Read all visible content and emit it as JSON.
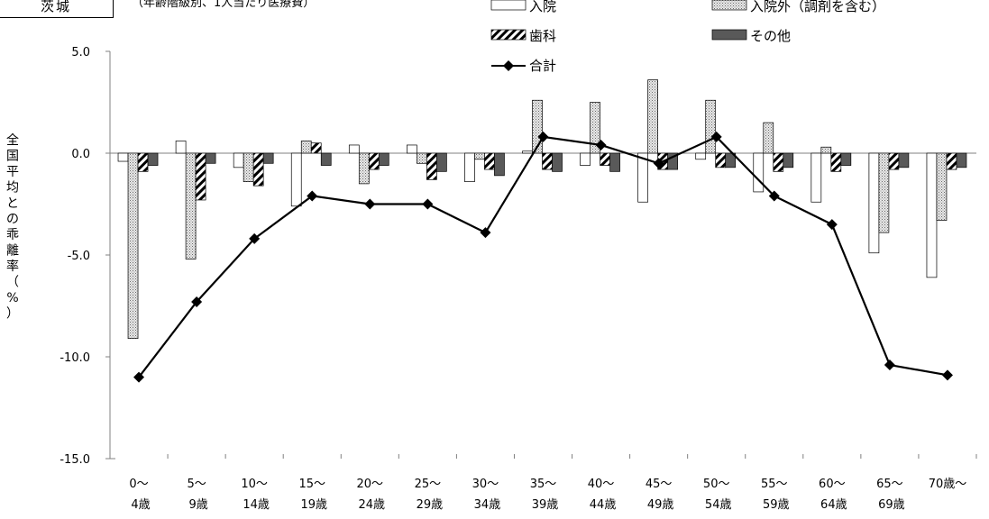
{
  "header": {
    "prefecture": "茨城",
    "subtitle": "（年齢階級別、1人当たり医療費）"
  },
  "chart_data": {
    "type": "bar",
    "ylabel": "全国平均との乖離率（%）",
    "ylim": [
      -15.0,
      5.0
    ],
    "yticks": [
      "5.0",
      "0.0",
      "-5.0",
      "-10.0",
      "-15.0"
    ],
    "categories": [
      [
        "0〜",
        "4歳"
      ],
      [
        "5〜",
        "9歳"
      ],
      [
        "10〜",
        "14歳"
      ],
      [
        "15〜",
        "19歳"
      ],
      [
        "20〜",
        "24歳"
      ],
      [
        "25〜",
        "29歳"
      ],
      [
        "30〜",
        "34歳"
      ],
      [
        "35〜",
        "39歳"
      ],
      [
        "40〜",
        "44歳"
      ],
      [
        "45〜",
        "49歳"
      ],
      [
        "50〜",
        "54歳"
      ],
      [
        "55〜",
        "59歳"
      ],
      [
        "60〜",
        "64歳"
      ],
      [
        "65〜",
        "69歳"
      ],
      [
        "70歳〜",
        ""
      ]
    ],
    "series": [
      {
        "name": "入院",
        "pattern": "white",
        "values": [
          -0.4,
          0.6,
          -0.7,
          -2.6,
          0.4,
          0.4,
          -1.4,
          0.1,
          -0.6,
          -2.4,
          -0.3,
          -1.9,
          -2.4,
          -4.9,
          -6.1
        ]
      },
      {
        "name": "入院外（調剤を含む）",
        "pattern": "dotted",
        "values": [
          -9.1,
          -5.2,
          -1.4,
          0.6,
          -1.5,
          -0.5,
          -0.3,
          2.6,
          2.5,
          3.6,
          2.6,
          1.5,
          0.3,
          -3.9,
          -3.3
        ]
      },
      {
        "name": "歯科",
        "pattern": "hatched",
        "values": [
          -0.9,
          -2.3,
          -1.6,
          0.5,
          -0.8,
          -1.3,
          -0.8,
          -0.8,
          -0.6,
          -0.8,
          -0.7,
          -0.9,
          -0.9,
          -0.8,
          -0.8
        ]
      },
      {
        "name": "その他",
        "pattern": "dark",
        "values": [
          -0.6,
          -0.5,
          -0.5,
          -0.6,
          -0.6,
          -0.9,
          -1.1,
          -0.9,
          -0.9,
          -0.8,
          -0.7,
          -0.7,
          -0.6,
          -0.7,
          -0.7
        ]
      }
    ],
    "line": {
      "name": "合計",
      "values": [
        -11.0,
        -7.3,
        -4.2,
        -2.1,
        -2.5,
        -2.5,
        -3.9,
        0.8,
        0.4,
        -0.5,
        0.8,
        -2.1,
        -3.5,
        -10.4,
        -10.9
      ]
    },
    "legend": "top",
    "colors": {
      "white": "#ffffff",
      "dotted": "#d8d8d8",
      "dark": "#595959",
      "line": "#000000"
    }
  }
}
